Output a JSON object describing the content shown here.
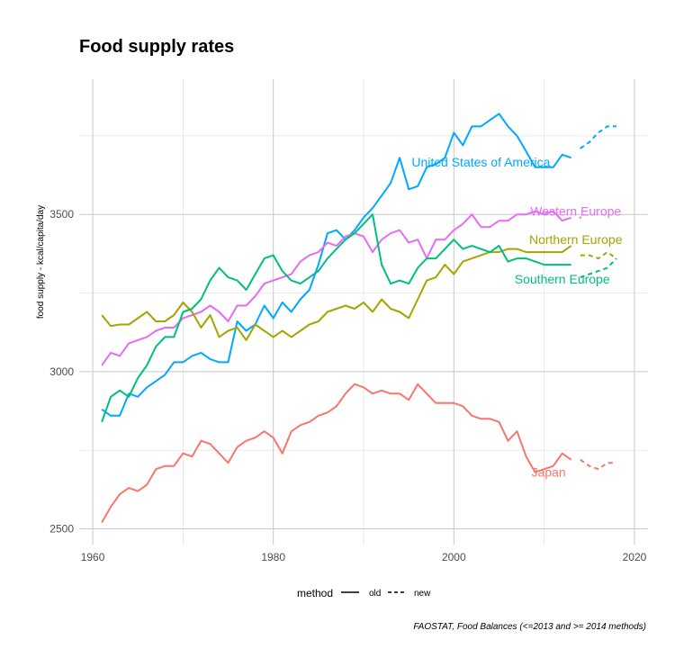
{
  "chart_data": {
    "type": "line",
    "title": "Food supply rates",
    "xlabel": "",
    "ylabel": "food supply - kcal/capita/day",
    "caption": "FAOSTAT, Food Balances (<=2013 and >= 2014 methods)",
    "xlim": [
      1958.5,
      2021.5
    ],
    "ylim": [
      2450,
      3930
    ],
    "x_ticks": [
      1960,
      1980,
      2000,
      2020
    ],
    "y_ticks": [
      2500,
      3000,
      3500
    ],
    "grid": true,
    "legend": {
      "title": "method",
      "position": "bottom",
      "items": [
        {
          "label": "old",
          "dash": "solid"
        },
        {
          "label": "new",
          "dash": "dashed"
        }
      ]
    },
    "series": [
      {
        "name": "United States of America",
        "color": "#00a9ff",
        "label_at": [
          2003,
          3667
        ],
        "old": {
          "x": [
            1961,
            1962,
            1963,
            1964,
            1965,
            1966,
            1967,
            1968,
            1969,
            1970,
            1971,
            1972,
            1973,
            1974,
            1975,
            1976,
            1977,
            1978,
            1979,
            1980,
            1981,
            1982,
            1983,
            1984,
            1985,
            1986,
            1987,
            1988,
            1989,
            1990,
            1991,
            1992,
            1993,
            1994,
            1995,
            1996,
            1997,
            1998,
            1999,
            2000,
            2001,
            2002,
            2003,
            2004,
            2005,
            2006,
            2007,
            2008,
            2009,
            2010,
            2011,
            2012,
            2013
          ],
          "y": [
            2880,
            2860,
            2860,
            2930,
            2920,
            2950,
            2970,
            2990,
            3030,
            3030,
            3050,
            3060,
            3040,
            3030,
            3030,
            3160,
            3130,
            3150,
            3210,
            3170,
            3220,
            3190,
            3230,
            3260,
            3340,
            3440,
            3450,
            3420,
            3450,
            3490,
            3520,
            3560,
            3600,
            3680,
            3580,
            3590,
            3650,
            3660,
            3680,
            3760,
            3720,
            3780,
            3780,
            3800,
            3820,
            3780,
            3750,
            3700,
            3650,
            3650,
            3650,
            3690,
            3680
          ]
        },
        "new": {
          "x": [
            2014,
            2015,
            2016,
            2017,
            2018
          ],
          "y": [
            3710,
            3730,
            3760,
            3780,
            3780
          ]
        }
      },
      {
        "name": "Western Europe",
        "color": "#e76bf3",
        "label_at": [
          2013.5,
          3510
        ],
        "old": {
          "x": [
            1961,
            1962,
            1963,
            1964,
            1965,
            1966,
            1967,
            1968,
            1969,
            1970,
            1971,
            1972,
            1973,
            1974,
            1975,
            1976,
            1977,
            1978,
            1979,
            1980,
            1981,
            1982,
            1983,
            1984,
            1985,
            1986,
            1987,
            1988,
            1989,
            1990,
            1991,
            1992,
            1993,
            1994,
            1995,
            1996,
            1997,
            1998,
            1999,
            2000,
            2001,
            2002,
            2003,
            2004,
            2005,
            2006,
            2007,
            2008,
            2009,
            2010,
            2011,
            2012,
            2013
          ],
          "y": [
            3020,
            3060,
            3050,
            3090,
            3100,
            3110,
            3130,
            3140,
            3140,
            3170,
            3180,
            3190,
            3210,
            3190,
            3160,
            3210,
            3210,
            3240,
            3280,
            3290,
            3300,
            3310,
            3350,
            3370,
            3380,
            3410,
            3400,
            3430,
            3440,
            3430,
            3380,
            3420,
            3440,
            3450,
            3410,
            3420,
            3360,
            3420,
            3420,
            3450,
            3470,
            3500,
            3460,
            3460,
            3480,
            3480,
            3500,
            3500,
            3510,
            3500,
            3510,
            3480,
            3490
          ]
        },
        "new": {
          "x": [
            2014
          ],
          "y": [
            3490
          ]
        }
      },
      {
        "name": "Northern Europe",
        "color": "#a3a500",
        "label_at": [
          2013.5,
          3420
        ],
        "old": {
          "x": [
            1961,
            1962,
            1963,
            1964,
            1965,
            1966,
            1967,
            1968,
            1969,
            1970,
            1971,
            1972,
            1973,
            1974,
            1975,
            1976,
            1977,
            1978,
            1979,
            1980,
            1981,
            1982,
            1983,
            1984,
            1985,
            1986,
            1987,
            1988,
            1989,
            1990,
            1991,
            1992,
            1993,
            1994,
            1995,
            1996,
            1997,
            1998,
            1999,
            2000,
            2001,
            2002,
            2003,
            2004,
            2005,
            2006,
            2007,
            2008,
            2009,
            2010,
            2011,
            2012,
            2013
          ],
          "y": [
            3180,
            3145,
            3150,
            3150,
            3170,
            3190,
            3160,
            3160,
            3180,
            3220,
            3190,
            3140,
            3180,
            3110,
            3130,
            3140,
            3100,
            3150,
            3130,
            3110,
            3130,
            3110,
            3130,
            3150,
            3160,
            3190,
            3200,
            3210,
            3200,
            3220,
            3190,
            3230,
            3200,
            3190,
            3170,
            3230,
            3290,
            3300,
            3340,
            3310,
            3350,
            3360,
            3370,
            3380,
            3380,
            3390,
            3390,
            3380,
            3380,
            3380,
            3380,
            3380,
            3400
          ]
        },
        "new": {
          "x": [
            2014,
            2015,
            2016,
            2017,
            2018
          ],
          "y": [
            3370,
            3370,
            3360,
            3380,
            3360
          ]
        }
      },
      {
        "name": "Southern Europe",
        "color": "#00bf7d",
        "label_at": [
          2012,
          3295
        ],
        "old": {
          "x": [
            1961,
            1962,
            1963,
            1964,
            1965,
            1966,
            1967,
            1968,
            1969,
            1970,
            1971,
            1972,
            1973,
            1974,
            1975,
            1976,
            1977,
            1978,
            1979,
            1980,
            1981,
            1982,
            1983,
            1984,
            1985,
            1986,
            1987,
            1988,
            1989,
            1990,
            1991,
            1992,
            1993,
            1994,
            1995,
            1996,
            1997,
            1998,
            1999,
            2000,
            2001,
            2002,
            2003,
            2004,
            2005,
            2006,
            2007,
            2008,
            2009,
            2010,
            2011,
            2012,
            2013
          ],
          "y": [
            2840,
            2920,
            2940,
            2920,
            2980,
            3020,
            3080,
            3110,
            3110,
            3190,
            3200,
            3230,
            3290,
            3330,
            3300,
            3290,
            3260,
            3310,
            3360,
            3370,
            3320,
            3290,
            3280,
            3300,
            3320,
            3360,
            3390,
            3420,
            3440,
            3470,
            3500,
            3340,
            3280,
            3290,
            3280,
            3330,
            3360,
            3360,
            3390,
            3420,
            3390,
            3400,
            3390,
            3380,
            3400,
            3350,
            3360,
            3360,
            3350,
            3340,
            3340,
            3340,
            3340
          ]
        },
        "new": {
          "x": [
            2014,
            2015,
            2016,
            2017,
            2018
          ],
          "y": [
            3300,
            3310,
            3320,
            3330,
            3360
          ]
        }
      },
      {
        "name": "Japan",
        "color": "#f8766d",
        "label_at": [
          2010.5,
          2680
        ],
        "old": {
          "x": [
            1961,
            1962,
            1963,
            1964,
            1965,
            1966,
            1967,
            1968,
            1969,
            1970,
            1971,
            1972,
            1973,
            1974,
            1975,
            1976,
            1977,
            1978,
            1979,
            1980,
            1981,
            1982,
            1983,
            1984,
            1985,
            1986,
            1987,
            1988,
            1989,
            1990,
            1991,
            1992,
            1993,
            1994,
            1995,
            1996,
            1997,
            1998,
            1999,
            2000,
            2001,
            2002,
            2003,
            2004,
            2005,
            2006,
            2007,
            2008,
            2009,
            2010,
            2011,
            2012,
            2013
          ],
          "y": [
            2520,
            2570,
            2610,
            2630,
            2620,
            2640,
            2690,
            2700,
            2700,
            2740,
            2730,
            2780,
            2770,
            2740,
            2710,
            2760,
            2780,
            2790,
            2810,
            2790,
            2740,
            2810,
            2830,
            2840,
            2860,
            2870,
            2890,
            2930,
            2960,
            2950,
            2930,
            2940,
            2930,
            2930,
            2910,
            2960,
            2930,
            2900,
            2900,
            2900,
            2890,
            2860,
            2850,
            2850,
            2840,
            2780,
            2810,
            2730,
            2680,
            2690,
            2700,
            2740,
            2720
          ]
        },
        "new": {
          "x": [
            2014,
            2015,
            2016,
            2017,
            2018
          ],
          "y": [
            2720,
            2700,
            2690,
            2710,
            2710
          ]
        }
      }
    ]
  }
}
